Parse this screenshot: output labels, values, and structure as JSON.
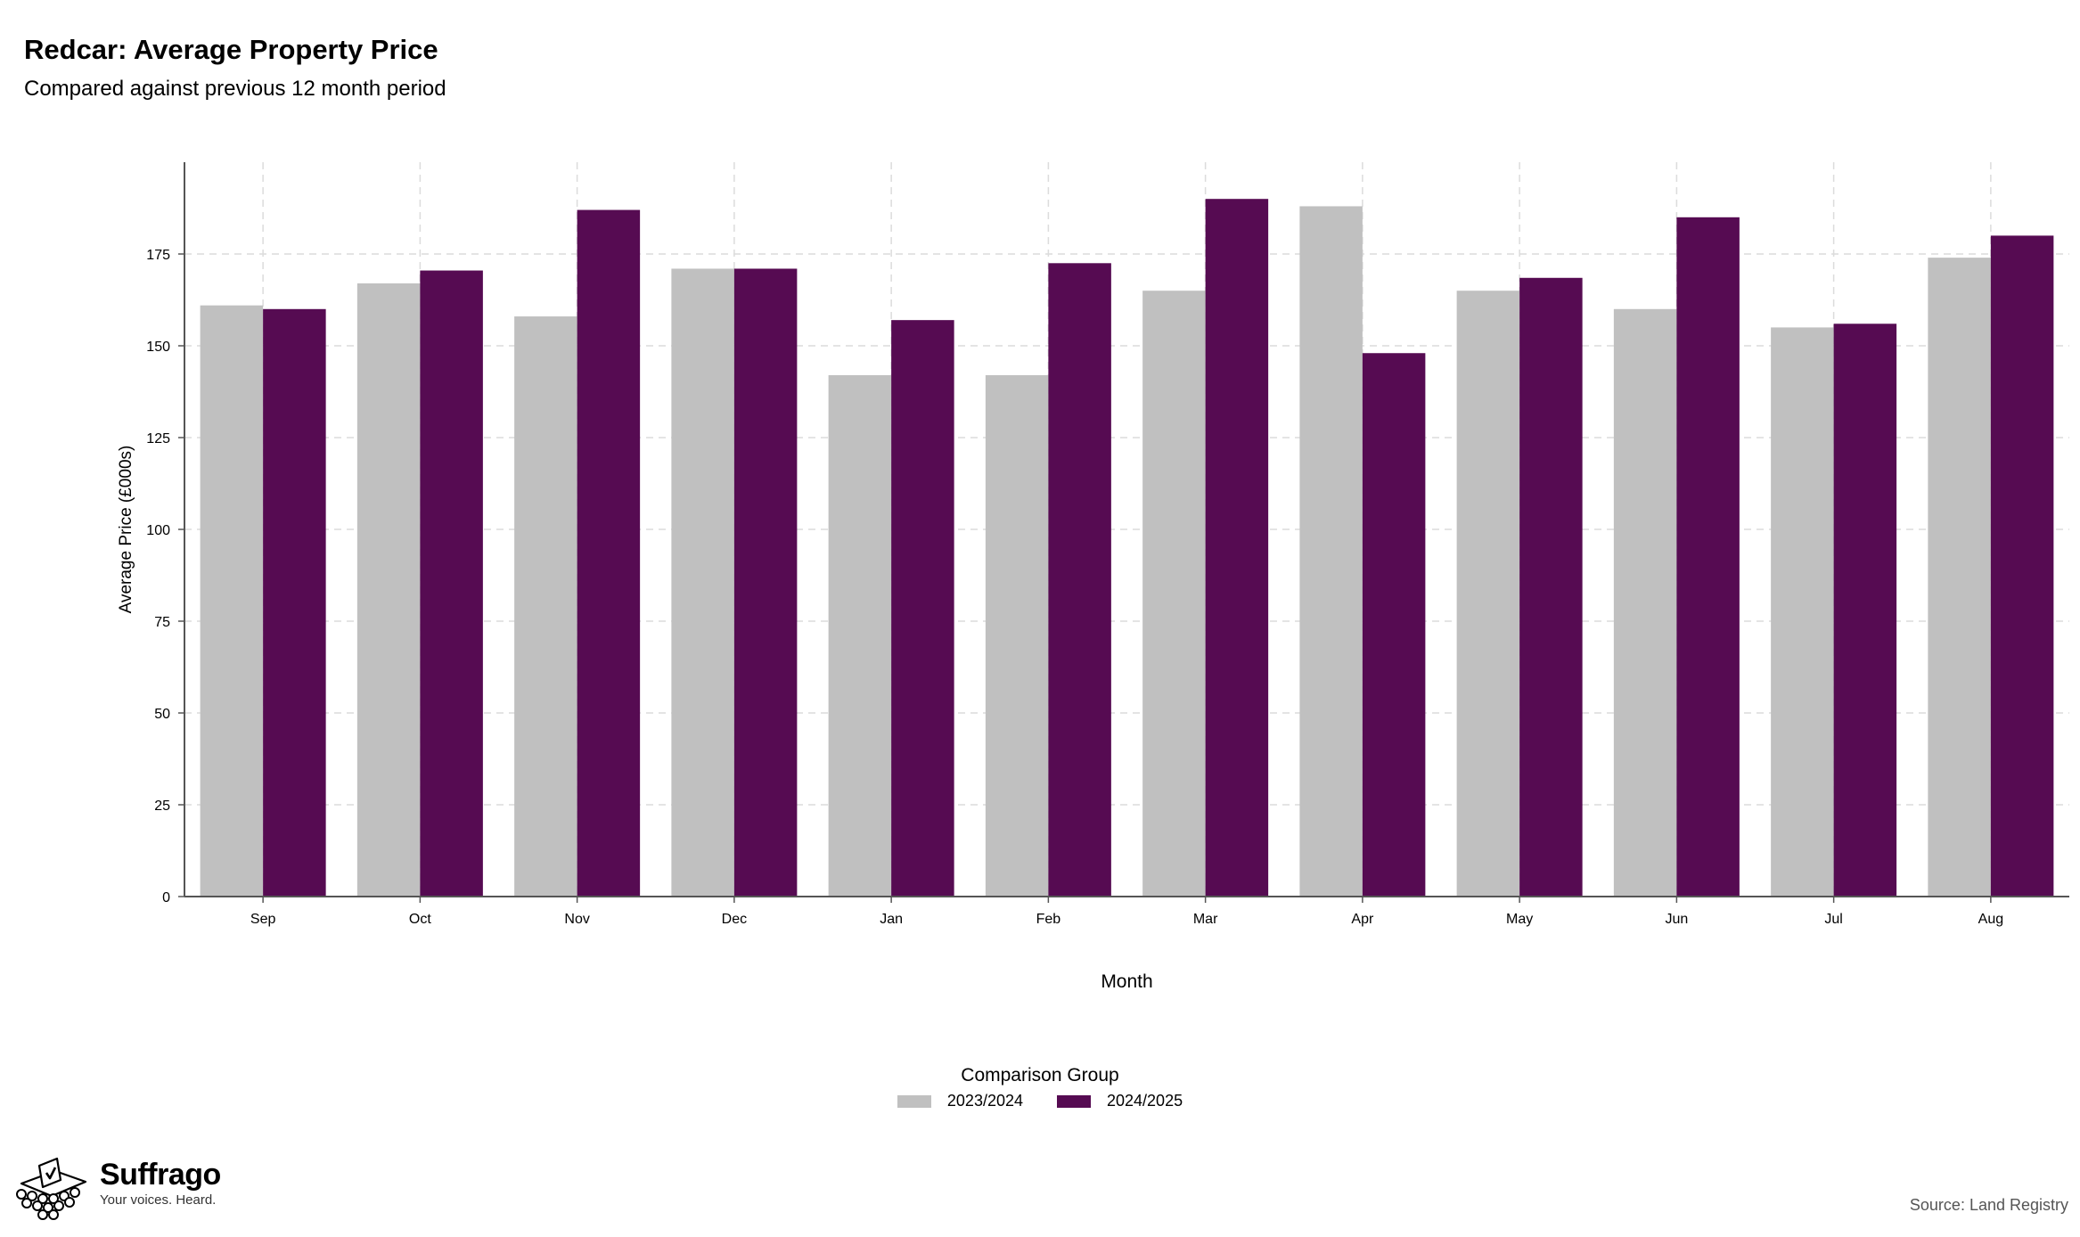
{
  "chart_data": {
    "type": "bar",
    "title": "Redcar: Average Property Price",
    "subtitle": "Compared against previous 12 month period",
    "xlabel": "Month",
    "ylabel": "Average Price (£000s)",
    "ylim": [
      0,
      200
    ],
    "yticks": [
      0,
      25,
      50,
      75,
      100,
      125,
      150,
      175
    ],
    "grid": true,
    "categories": [
      "Sep",
      "Oct",
      "Nov",
      "Dec",
      "Jan",
      "Feb",
      "Mar",
      "Apr",
      "May",
      "Jun",
      "Jul",
      "Aug"
    ],
    "series": [
      {
        "name": "2023/2024",
        "color": "#c0c0c0",
        "values": [
          161,
          167,
          158,
          171,
          142,
          142,
          165,
          188,
          165,
          160,
          155,
          174
        ]
      },
      {
        "name": "2024/2025",
        "color": "#560b52",
        "values": [
          160,
          170.5,
          187,
          171,
          157,
          172.5,
          190,
          148,
          168.5,
          185,
          156,
          180
        ]
      }
    ],
    "legend_title": "Comparison Group",
    "legend_position": "bottom"
  },
  "brand": {
    "name": "Suffrago",
    "tagline": "Your voices. Heard."
  },
  "source": "Source: Land Registry"
}
